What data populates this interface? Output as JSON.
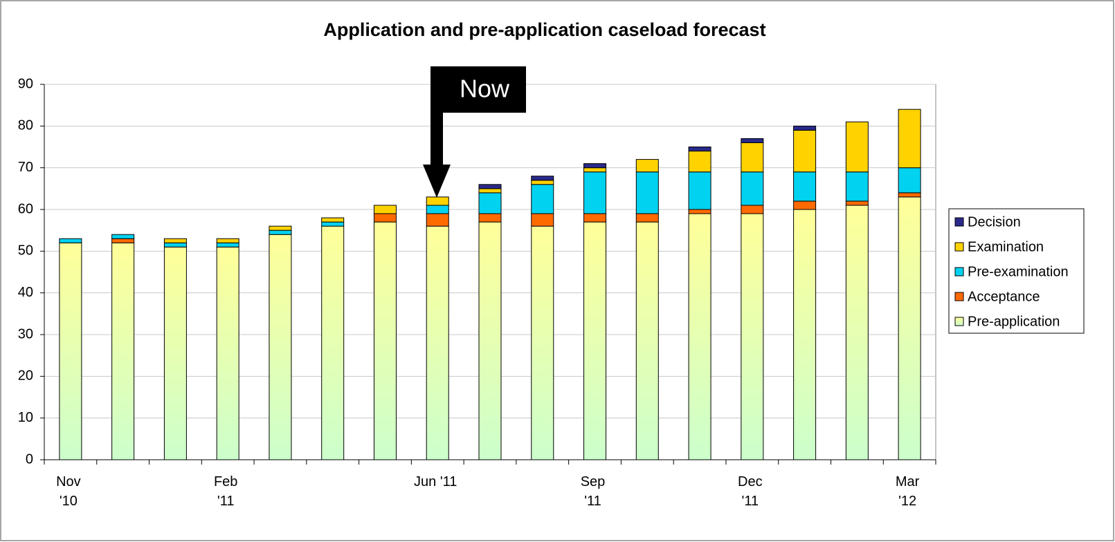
{
  "chart_data": {
    "type": "stacked_bar",
    "title": "Application and pre-application caseload forecast",
    "annotation": "Now",
    "categories": [
      "Nov\n'10",
      null,
      null,
      "Feb\n'11",
      null,
      null,
      null,
      "Jun '11",
      null,
      null,
      "Sep\n'11",
      null,
      null,
      "Dec\n'11",
      null,
      null,
      "Mar\n'12"
    ],
    "series": [
      {
        "name": "Pre-application",
        "color": "#f4ffa8",
        "values": [
          52,
          52,
          51,
          51,
          54,
          56,
          57,
          56,
          57,
          56,
          57,
          57,
          59,
          59,
          60,
          61,
          63
        ]
      },
      {
        "name": "Acceptance",
        "color": "#ff6a00",
        "values": [
          0,
          1,
          0,
          0,
          0,
          0,
          2,
          3,
          2,
          3,
          2,
          2,
          1,
          2,
          2,
          1,
          1
        ]
      },
      {
        "name": "Pre-examination",
        "color": "#00d2f0",
        "values": [
          1,
          1,
          1,
          1,
          1,
          1,
          0,
          2,
          5,
          7,
          10,
          10,
          9,
          8,
          7,
          7,
          6
        ]
      },
      {
        "name": "Examination",
        "color": "#ffd200",
        "values": [
          0,
          0,
          1,
          1,
          1,
          1,
          2,
          2,
          1,
          1,
          1,
          3,
          5,
          7,
          10,
          12,
          14
        ]
      },
      {
        "name": "Decision",
        "color": "#2a2a8a",
        "values": [
          0,
          0,
          0,
          0,
          0,
          0,
          0,
          0,
          1,
          1,
          1,
          0,
          1,
          1,
          1,
          0,
          0
        ]
      }
    ],
    "ylim": [
      0,
      90
    ],
    "yticks": [
      0,
      10,
      20,
      30,
      40,
      50,
      60,
      70,
      80,
      90
    ],
    "grid": true,
    "legend": "right"
  }
}
